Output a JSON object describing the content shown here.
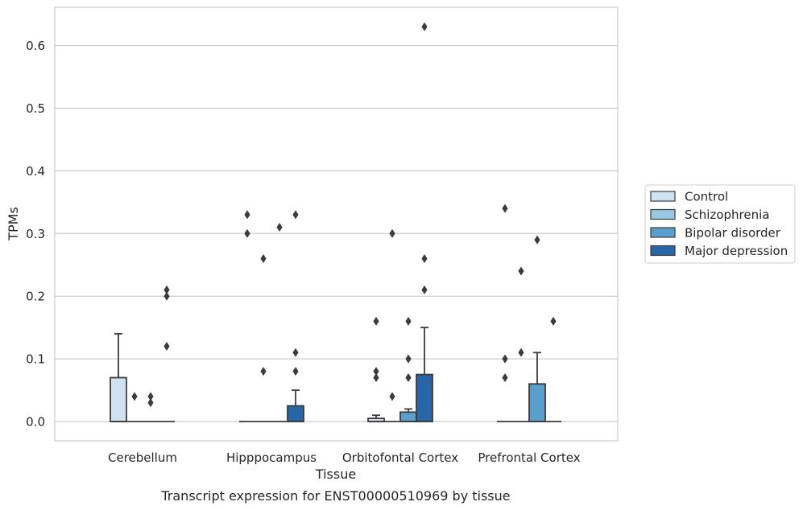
{
  "chart_data": {
    "type": "box",
    "caption": "Transcript expression for ENST00000510969 by tissue",
    "xlabel": "Tissue",
    "ylabel": "TPMs",
    "ylim": [
      -0.031,
      0.662
    ],
    "yticks": [
      0.0,
      0.1,
      0.2,
      0.3,
      0.4,
      0.5,
      0.6
    ],
    "ytick_labels": [
      "0.0",
      "0.1",
      "0.2",
      "0.3",
      "0.4",
      "0.5",
      "0.6"
    ],
    "grid": "horizontal",
    "legend_position": "right-outside",
    "categories": [
      "Cerebellum",
      "Hipppocampus",
      "Orbitofontal Cortex",
      "Prefrontal Cortex"
    ],
    "series": [
      {
        "name": "Control",
        "color": "#d0e1f2",
        "boxes": [
          {
            "q1": 0.0,
            "median": 0.0,
            "q3": 0.07,
            "whisker_low": 0.0,
            "whisker_high": 0.14,
            "outliers": []
          },
          {
            "q1": 0.0,
            "median": 0.0,
            "q3": 0.0,
            "whisker_low": 0.0,
            "whisker_high": 0.0,
            "outliers": [
              0.33,
              0.3
            ]
          },
          {
            "q1": 0.0,
            "median": 0.0,
            "q3": 0.005,
            "whisker_low": 0.0,
            "whisker_high": 0.01,
            "outliers": [
              0.16,
              0.08,
              0.07
            ]
          },
          {
            "q1": 0.0,
            "median": 0.0,
            "q3": 0.0,
            "whisker_low": 0.0,
            "whisker_high": 0.0,
            "outliers": [
              0.34,
              0.1,
              0.07
            ]
          }
        ]
      },
      {
        "name": "Schizophrenia",
        "color": "#9ac8e0",
        "boxes": [
          {
            "q1": 0.0,
            "median": 0.0,
            "q3": 0.0,
            "whisker_low": 0.0,
            "whisker_high": 0.0,
            "outliers": [
              0.04
            ]
          },
          {
            "q1": 0.0,
            "median": 0.0,
            "q3": 0.0,
            "whisker_low": 0.0,
            "whisker_high": 0.0,
            "outliers": [
              0.26,
              0.08
            ]
          },
          {
            "q1": 0.0,
            "median": 0.0,
            "q3": 0.0,
            "whisker_low": 0.0,
            "whisker_high": 0.0,
            "outliers": [
              0.3,
              0.04
            ]
          },
          {
            "q1": 0.0,
            "median": 0.0,
            "q3": 0.0,
            "whisker_low": 0.0,
            "whisker_high": 0.0,
            "outliers": [
              0.24,
              0.11
            ]
          }
        ]
      },
      {
        "name": "Bipolar disorder",
        "color": "#5a9fcb",
        "boxes": [
          {
            "q1": 0.0,
            "median": 0.0,
            "q3": 0.0,
            "whisker_low": 0.0,
            "whisker_high": 0.0,
            "outliers": [
              0.04,
              0.03
            ]
          },
          {
            "q1": 0.0,
            "median": 0.0,
            "q3": 0.0,
            "whisker_low": 0.0,
            "whisker_high": 0.0,
            "outliers": [
              0.31
            ]
          },
          {
            "q1": 0.0,
            "median": 0.0,
            "q3": 0.015,
            "whisker_low": 0.0,
            "whisker_high": 0.02,
            "outliers": [
              0.16,
              0.1,
              0.07
            ]
          },
          {
            "q1": 0.0,
            "median": 0.0,
            "q3": 0.06,
            "whisker_low": 0.0,
            "whisker_high": 0.11,
            "outliers": [
              0.29
            ]
          }
        ]
      },
      {
        "name": "Major depression",
        "color": "#2866a8",
        "boxes": [
          {
            "q1": 0.0,
            "median": 0.0,
            "q3": 0.0,
            "whisker_low": 0.0,
            "whisker_high": 0.0,
            "outliers": [
              0.21,
              0.2,
              0.12
            ]
          },
          {
            "q1": 0.0,
            "median": 0.0,
            "q3": 0.025,
            "whisker_low": 0.0,
            "whisker_high": 0.05,
            "outliers": [
              0.33,
              0.11,
              0.08
            ]
          },
          {
            "q1": 0.0,
            "median": 0.0,
            "q3": 0.075,
            "whisker_low": 0.0,
            "whisker_high": 0.15,
            "outliers": [
              0.63,
              0.26,
              0.21
            ]
          },
          {
            "q1": 0.0,
            "median": 0.0,
            "q3": 0.0,
            "whisker_low": 0.0,
            "whisker_high": 0.0,
            "outliers": [
              0.16
            ]
          }
        ]
      }
    ]
  }
}
